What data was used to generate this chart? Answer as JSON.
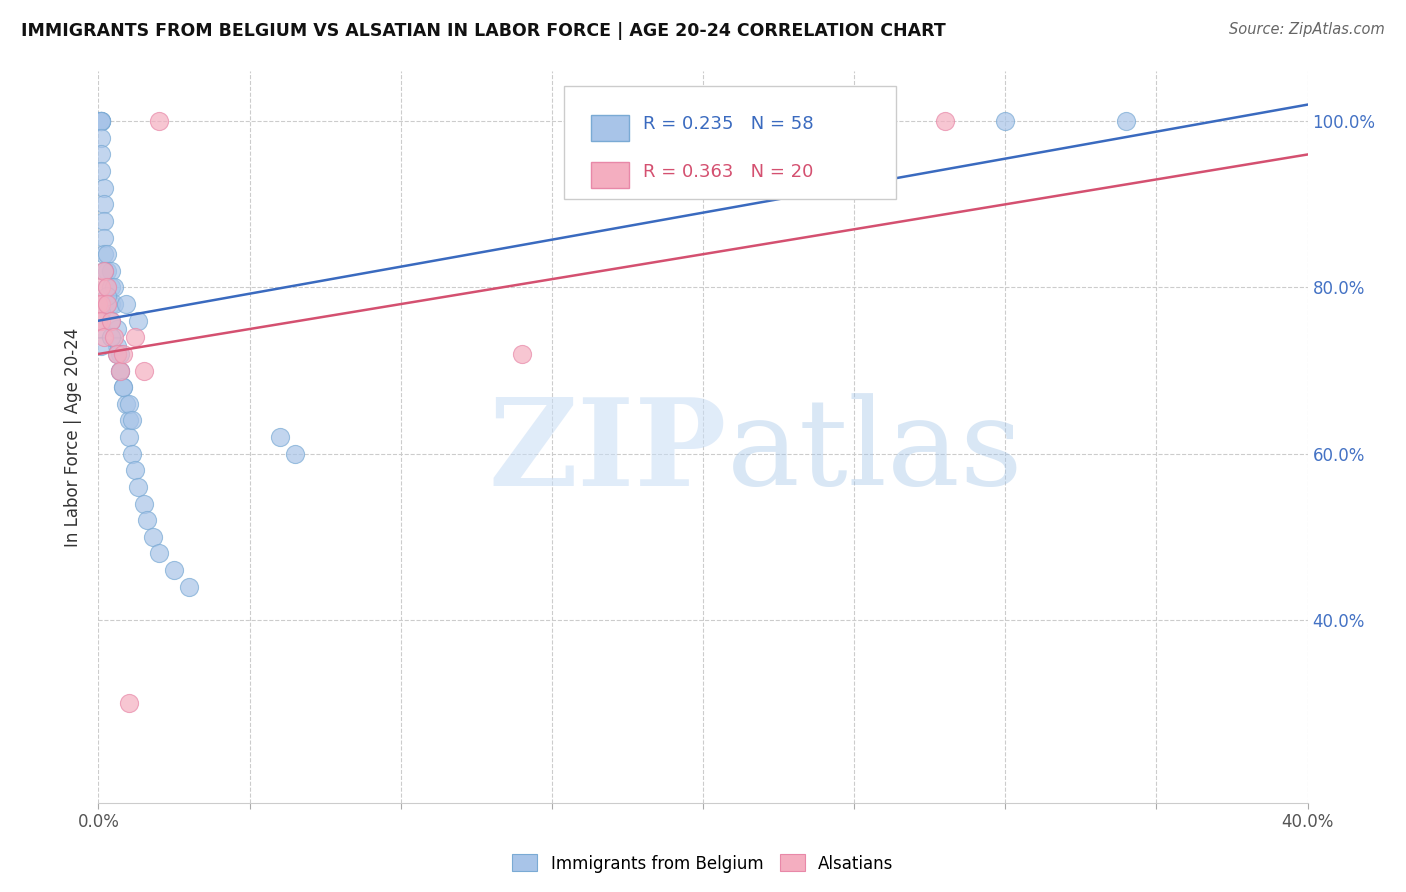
{
  "title": "IMMIGRANTS FROM BELGIUM VS ALSATIAN IN LABOR FORCE | AGE 20-24 CORRELATION CHART",
  "source": "Source: ZipAtlas.com",
  "ylabel": "In Labor Force | Age 20-24",
  "ytick_labels": [
    "40.0%",
    "60.0%",
    "80.0%",
    "100.0%"
  ],
  "ytick_values": [
    0.4,
    0.6,
    0.8,
    1.0
  ],
  "xlim": [
    0.0,
    0.4
  ],
  "ylim": [
    0.18,
    1.06
  ],
  "blue_r": "0.235",
  "blue_n": "58",
  "pink_r": "0.363",
  "pink_n": "20",
  "legend_label_blue": "Immigrants from Belgium",
  "legend_label_pink": "Alsatians",
  "watermark_zip": "ZIP",
  "watermark_atlas": "atlas",
  "blue_color": "#a8c4e8",
  "blue_edge": "#7aaad4",
  "pink_color": "#f4aec0",
  "pink_edge": "#e888a8",
  "trend_blue": "#3a6abf",
  "trend_pink": "#d45070",
  "blue_scatter_x": [
    0.0,
    0.001,
    0.001,
    0.001,
    0.001,
    0.001,
    0.001,
    0.001,
    0.001,
    0.002,
    0.002,
    0.002,
    0.002,
    0.002,
    0.003,
    0.003,
    0.003,
    0.003,
    0.004,
    0.004,
    0.004,
    0.005,
    0.005,
    0.006,
    0.006,
    0.007,
    0.007,
    0.008,
    0.009,
    0.01,
    0.01,
    0.011,
    0.012,
    0.013,
    0.015,
    0.016,
    0.018,
    0.02,
    0.025,
    0.03,
    0.06,
    0.065,
    0.013,
    0.009,
    0.002,
    0.003,
    0.001,
    0.001,
    0.001,
    0.004,
    0.004,
    0.006,
    0.007,
    0.008,
    0.01,
    0.011,
    0.3,
    0.34
  ],
  "blue_scatter_y": [
    1.0,
    1.0,
    1.0,
    1.0,
    1.0,
    1.0,
    0.98,
    0.96,
    0.94,
    0.92,
    0.9,
    0.88,
    0.86,
    0.84,
    0.84,
    0.82,
    0.8,
    0.78,
    0.82,
    0.8,
    0.78,
    0.8,
    0.78,
    0.75,
    0.73,
    0.72,
    0.7,
    0.68,
    0.66,
    0.64,
    0.62,
    0.6,
    0.58,
    0.56,
    0.54,
    0.52,
    0.5,
    0.48,
    0.46,
    0.44,
    0.62,
    0.6,
    0.76,
    0.78,
    0.82,
    0.79,
    0.77,
    0.75,
    0.73,
    0.76,
    0.74,
    0.72,
    0.7,
    0.68,
    0.66,
    0.64,
    1.0,
    1.0
  ],
  "pink_scatter_x": [
    0.0,
    0.0,
    0.001,
    0.001,
    0.001,
    0.002,
    0.002,
    0.003,
    0.003,
    0.004,
    0.005,
    0.006,
    0.007,
    0.008,
    0.01,
    0.012,
    0.015,
    0.02,
    0.14,
    0.28
  ],
  "pink_scatter_y": [
    0.78,
    0.76,
    0.8,
    0.78,
    0.76,
    0.82,
    0.74,
    0.8,
    0.78,
    0.76,
    0.74,
    0.72,
    0.7,
    0.72,
    0.3,
    0.74,
    0.7,
    1.0,
    0.72,
    1.0
  ],
  "trend_blue_x0": 0.0,
  "trend_blue_x1": 0.4,
  "trend_blue_y0": 0.76,
  "trend_blue_y1": 1.02,
  "trend_pink_x0": 0.0,
  "trend_pink_x1": 0.4,
  "trend_pink_y0": 0.72,
  "trend_pink_y1": 0.96
}
